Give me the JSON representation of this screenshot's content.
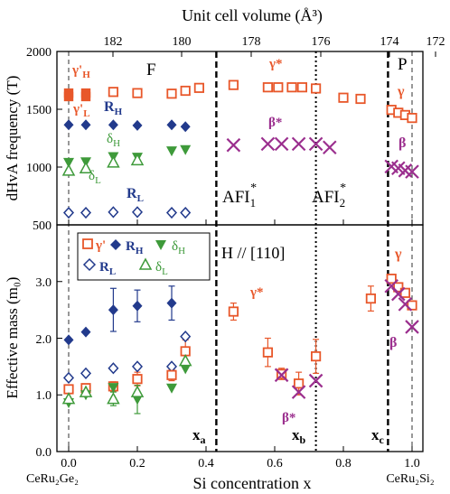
{
  "colors": {
    "gamma": "#e8572a",
    "beta": "#9b2f8e",
    "R": "#223a8c",
    "delta": "#3e9a3a",
    "axis": "#000000"
  },
  "axes": {
    "top_xlabel": "Unit cell volume (Å³)",
    "top_ticks": [
      "182",
      "180",
      "178",
      "176",
      "174",
      "172"
    ],
    "bottom_xlabel": "Si concentration x",
    "bottom_ticks": [
      "0.0",
      "0.2",
      "0.4",
      "0.6",
      "0.8",
      "1.0"
    ],
    "top_panel_ylabel": "dHvA frequency (T)",
    "top_panel_yticks": [
      "500",
      "1000",
      "1500",
      "2000"
    ],
    "bottom_panel_ylabel": "Effective mass (m₀)",
    "bottom_panel_yticks": [
      "0.0",
      "1.0",
      "2.0",
      "3.0"
    ],
    "end_left": "CeRu₂Ge₂",
    "end_right": "CeRu₂Si₂"
  },
  "annotations": {
    "F": "F",
    "P": "P",
    "AFI1": "AFI",
    "AFI1_sub": "1",
    "AFI2": "AFI",
    "AFI2_sub": "2",
    "star": "*",
    "field": "H // [110]",
    "xa": "x",
    "xa_sub": "a",
    "xb": "x",
    "xb_sub": "b",
    "xc": "x",
    "xc_sub": "c"
  },
  "labels": {
    "gammaH": "γ'",
    "gammaH_sub": "H",
    "gammaL": "γ'",
    "gammaL_sub": "L",
    "RH": "R",
    "RH_sub": "H",
    "RL": "R",
    "RL_sub": "L",
    "deltaH": "δ",
    "deltaH_sub": "H",
    "deltaL": "δ",
    "deltaL_sub": "L",
    "gammaStar": "γ*",
    "betaStar": "β*",
    "gamma": "γ",
    "beta": "β"
  },
  "legend": {
    "gammaPrime": "γ'",
    "RH": "R",
    "RH_sub": "H",
    "deltaH": "δ",
    "deltaH_sub": "H",
    "RL": "R",
    "RL_sub": "L",
    "deltaL": "δ",
    "deltaL_sub": "L"
  },
  "chart_data": [
    {
      "type": "scatter",
      "panel": "top",
      "xlabel": "Si concentration x",
      "ylabel": "dHvA frequency (T)",
      "xlim": [
        -0.03,
        1.03
      ],
      "ylim": [
        500,
        2000
      ],
      "top_axis": {
        "label": "Unit cell volume (Å³)",
        "ticks": [
          182,
          180,
          178,
          176,
          174,
          172
        ]
      },
      "vlines": [
        {
          "x": 0.43,
          "style": "dashed"
        },
        {
          "x": 0.72,
          "style": "dotted"
        },
        {
          "x": 0.93,
          "style": "dashed"
        }
      ],
      "series": [
        {
          "name": "γ'H",
          "marker": "filled-square",
          "color": "gamma",
          "points": [
            [
              0.0,
              1640
            ],
            [
              0.05,
              1640
            ]
          ]
        },
        {
          "name": "γ'L",
          "marker": "filled-square",
          "color": "gamma",
          "points": [
            [
              0.0,
              1610
            ],
            [
              0.05,
              1610
            ]
          ]
        },
        {
          "name": "γ'",
          "marker": "open-square",
          "color": "gamma",
          "points": [
            [
              0.13,
              1650
            ],
            [
              0.2,
              1640
            ],
            [
              0.3,
              1635
            ],
            [
              0.34,
              1660
            ],
            [
              0.38,
              1685
            ]
          ]
        },
        {
          "name": "RH",
          "marker": "filled-diamond",
          "color": "R",
          "points": [
            [
              0.0,
              1365
            ],
            [
              0.05,
              1365
            ],
            [
              0.13,
              1365
            ],
            [
              0.2,
              1360
            ],
            [
              0.3,
              1365
            ],
            [
              0.34,
              1350
            ]
          ]
        },
        {
          "name": "δH",
          "marker": "filled-triangle",
          "color": "delta",
          "points": [
            [
              0.0,
              1040
            ],
            [
              0.05,
              1045
            ],
            [
              0.13,
              1090
            ],
            [
              0.2,
              1085
            ],
            [
              0.3,
              1140
            ],
            [
              0.34,
              1150
            ]
          ]
        },
        {
          "name": "δL",
          "marker": "open-triangle",
          "color": "delta",
          "points": [
            [
              0.0,
              970
            ],
            [
              0.05,
              990
            ],
            [
              0.13,
              1040
            ],
            [
              0.2,
              1060
            ]
          ]
        },
        {
          "name": "RL",
          "marker": "open-diamond",
          "color": "R",
          "points": [
            [
              0.0,
              605
            ],
            [
              0.05,
              605
            ],
            [
              0.13,
              610
            ],
            [
              0.2,
              610
            ],
            [
              0.3,
              605
            ],
            [
              0.34,
              605
            ]
          ]
        },
        {
          "name": "γ*",
          "marker": "open-square",
          "color": "gamma",
          "points": [
            [
              0.48,
              1710
            ],
            [
              0.58,
              1690
            ],
            [
              0.61,
              1690
            ],
            [
              0.65,
              1690
            ],
            [
              0.68,
              1690
            ],
            [
              0.72,
              1680
            ],
            [
              0.8,
              1600
            ],
            [
              0.85,
              1590
            ]
          ]
        },
        {
          "name": "β*",
          "marker": "cross",
          "color": "beta",
          "points": [
            [
              0.48,
              1190
            ],
            [
              0.58,
              1200
            ],
            [
              0.62,
              1200
            ],
            [
              0.67,
              1200
            ],
            [
              0.72,
              1200
            ],
            [
              0.76,
              1170
            ]
          ]
        },
        {
          "name": "γ",
          "marker": "open-square",
          "color": "gamma",
          "points": [
            [
              0.94,
              1495
            ],
            [
              0.96,
              1470
            ],
            [
              0.98,
              1450
            ],
            [
              1.0,
              1425
            ]
          ]
        },
        {
          "name": "β",
          "marker": "cross",
          "color": "beta",
          "points": [
            [
              0.94,
              1005
            ],
            [
              0.96,
              990
            ],
            [
              0.98,
              970
            ],
            [
              1.0,
              960
            ]
          ]
        }
      ]
    },
    {
      "type": "scatter",
      "panel": "bottom",
      "xlabel": "Si concentration x",
      "ylabel": "Effective mass (m₀)",
      "xlim": [
        -0.03,
        1.03
      ],
      "ylim": [
        0,
        4
      ],
      "xticks": [
        0.0,
        0.2,
        0.4,
        0.6,
        0.8,
        1.0
      ],
      "vlines": [
        {
          "x": 0.43,
          "style": "dashed"
        },
        {
          "x": 0.72,
          "style": "dotted"
        },
        {
          "x": 0.93,
          "style": "dashed"
        }
      ],
      "series": [
        {
          "name": "RH",
          "marker": "filled-diamond",
          "color": "R",
          "points": [
            [
              0.0,
              1.97,
              0
            ],
            [
              0.05,
              2.11,
              0
            ],
            [
              0.13,
              2.5,
              0.38
            ],
            [
              0.2,
              2.57,
              0.28
            ],
            [
              0.3,
              2.62,
              0.3
            ]
          ]
        },
        {
          "name": "RL",
          "marker": "open-diamond",
          "color": "R",
          "points": [
            [
              0.0,
              1.3,
              0
            ],
            [
              0.05,
              1.38,
              0
            ],
            [
              0.13,
              1.47,
              0
            ],
            [
              0.2,
              1.5,
              0
            ],
            [
              0.3,
              1.5,
              0
            ],
            [
              0.34,
              2.03,
              0
            ]
          ]
        },
        {
          "name": "γ'",
          "marker": "open-square",
          "color": "gamma",
          "points": [
            [
              0.0,
              1.1,
              0
            ],
            [
              0.05,
              1.12,
              0.05
            ],
            [
              0.13,
              1.15,
              0.08
            ],
            [
              0.2,
              1.28,
              0.12
            ],
            [
              0.3,
              1.35,
              0.1
            ],
            [
              0.34,
              1.77,
              0.2
            ]
          ]
        },
        {
          "name": "δH",
          "marker": "filled-triangle",
          "color": "delta",
          "points": [
            [
              0.0,
              0.86,
              0
            ],
            [
              0.05,
              1.0,
              0
            ],
            [
              0.13,
              1.13,
              0
            ],
            [
              0.2,
              0.92,
              0.25
            ],
            [
              0.3,
              1.12,
              0
            ],
            [
              0.34,
              1.46,
              0
            ]
          ]
        },
        {
          "name": "δL",
          "marker": "open-triangle",
          "color": "delta",
          "points": [
            [
              0.0,
              0.93,
              0
            ],
            [
              0.05,
              1.05,
              0
            ],
            [
              0.13,
              0.93,
              0.12
            ],
            [
              0.2,
              1.05,
              0
            ],
            [
              0.34,
              1.6,
              0
            ]
          ]
        },
        {
          "name": "γ*",
          "marker": "open-square",
          "color": "gamma",
          "points": [
            [
              0.48,
              2.47,
              0.15
            ],
            [
              0.58,
              1.75,
              0.25
            ],
            [
              0.62,
              1.37,
              0.1
            ],
            [
              0.67,
              1.2,
              0.2
            ],
            [
              0.72,
              1.68,
              0.3
            ],
            [
              0.88,
              2.7,
              0.22
            ]
          ]
        },
        {
          "name": "β*",
          "marker": "cross",
          "color": "beta",
          "points": [
            [
              0.62,
              1.35,
              0
            ],
            [
              0.67,
              1.05,
              0
            ],
            [
              0.72,
              1.25,
              0
            ]
          ]
        },
        {
          "name": "γ",
          "marker": "open-square",
          "color": "gamma",
          "points": [
            [
              0.94,
              3.05,
              0
            ],
            [
              0.96,
              2.9,
              0
            ],
            [
              0.98,
              2.8,
              0
            ],
            [
              1.0,
              2.58,
              0
            ]
          ]
        },
        {
          "name": "β",
          "marker": "cross",
          "color": "beta",
          "points": [
            [
              0.94,
              2.92,
              0
            ],
            [
              0.96,
              2.78,
              0
            ],
            [
              0.98,
              2.6,
              0
            ],
            [
              1.0,
              2.2,
              0
            ]
          ]
        }
      ]
    }
  ]
}
